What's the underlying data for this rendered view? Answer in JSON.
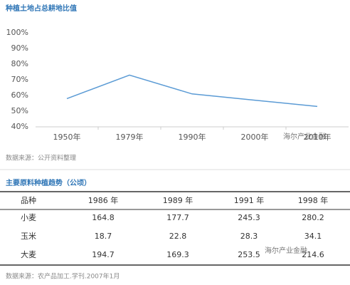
{
  "chart_data": {
    "type": "line",
    "title": "种植土地占总耕地比值",
    "categories": [
      "1950年",
      "1979年",
      "1990年",
      "2000年",
      "2010年"
    ],
    "series": [
      {
        "name": "种植土地占总耕地比值",
        "color": "#5b9bd5",
        "values": [
          58,
          73,
          61,
          57,
          53
        ]
      }
    ],
    "ylim": [
      40,
      100
    ],
    "yticks": [
      {
        "value": 40,
        "label": "40%"
      },
      {
        "value": 50,
        "label": "50%"
      },
      {
        "value": 60,
        "label": "60%"
      },
      {
        "value": 70,
        "label": "70%"
      },
      {
        "value": 80,
        "label": "80%"
      },
      {
        "value": 90,
        "label": "90%"
      },
      {
        "value": 100,
        "label": "100%"
      }
    ],
    "grid": false,
    "source": "数据来源：公开资料整理",
    "watermark": "海尔产业金融"
  },
  "table": {
    "title": "主要原料种植趋势（公顷）",
    "header": [
      "品种",
      "1986 年",
      "1989 年",
      "1991 年",
      "1998 年"
    ],
    "rows": [
      [
        "小麦",
        "164.8",
        "177.7",
        "245.3",
        "280.2"
      ],
      [
        "玉米",
        "18.7",
        "22.8",
        "28.3",
        "34.1"
      ],
      [
        "大麦",
        "194.7",
        "169.3",
        "253.5",
        "214.6"
      ]
    ],
    "source": "数据来源：农产品加工.学刊.2007年1月",
    "watermark": "海尔产业金融"
  }
}
